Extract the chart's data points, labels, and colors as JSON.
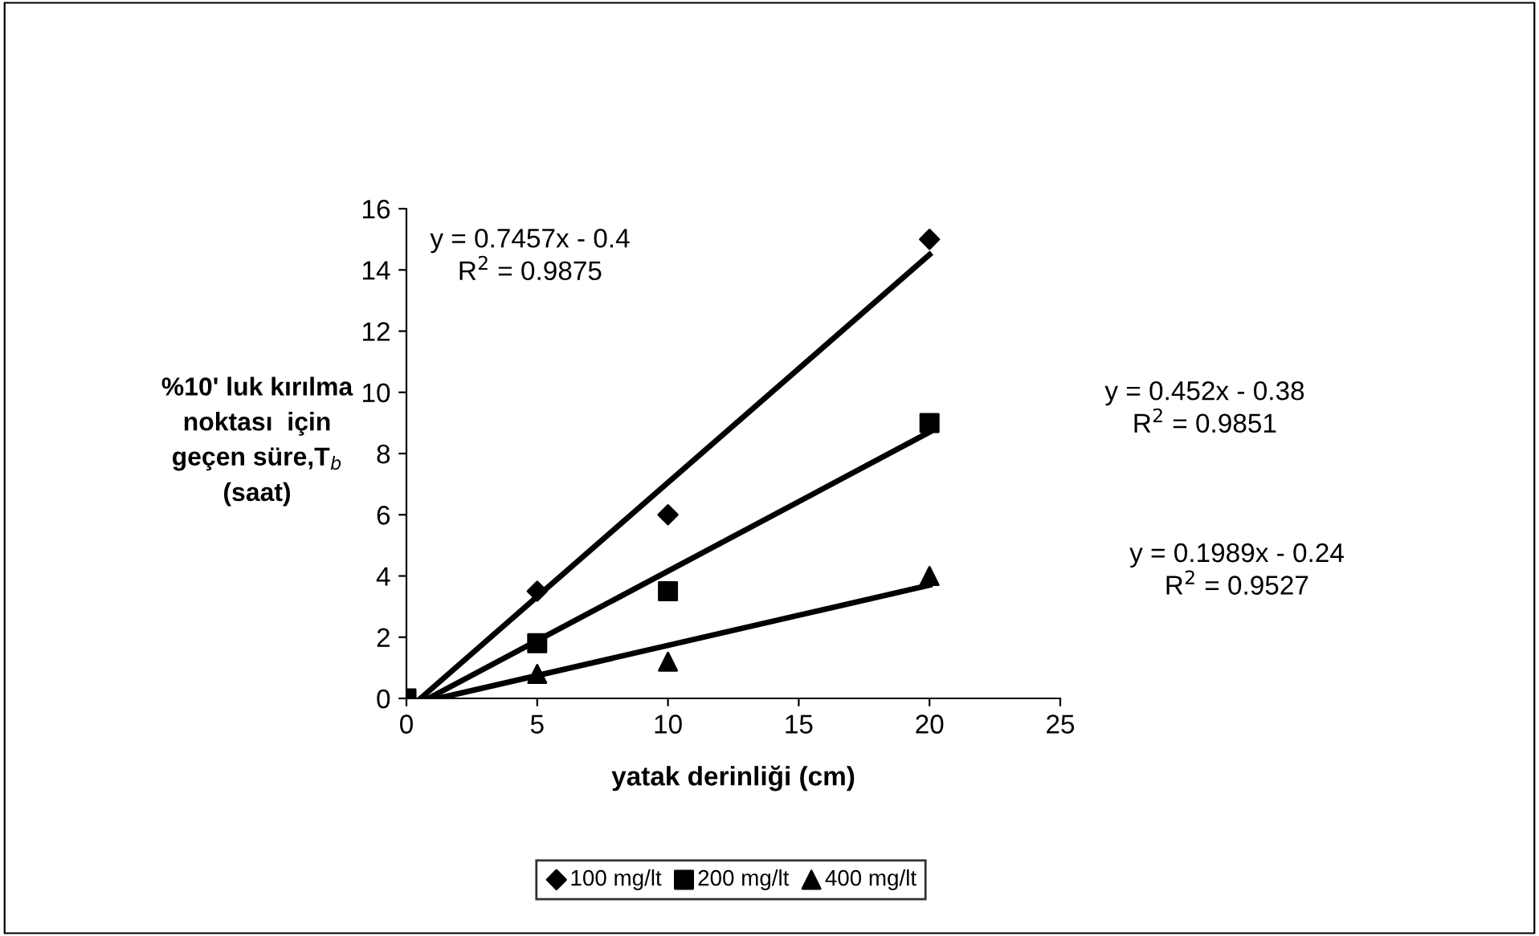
{
  "chart_data": {
    "type": "scatter",
    "xlabel": "yatak derinliği (cm)",
    "ylabel": "%10' luk kırılma\nnoktası  için\ngeçen süre,T$_{b}$\n(saat)",
    "x": [
      0,
      5,
      10,
      20
    ],
    "series": [
      {
        "name": "100 mg/lt",
        "color": "#000000",
        "marker": "diamond",
        "values": [
          null,
          3.5,
          6,
          15
        ]
      },
      {
        "name": "200 mg/lt",
        "color": "#000000",
        "marker": "square",
        "values": [
          0,
          1.8,
          3.5,
          9
        ]
      },
      {
        "name": "400 mg/lt",
        "color": "#000000",
        "marker": "triangle",
        "values": [
          null,
          0.8,
          1.2,
          4
        ]
      },
      {
        "type": "line",
        "color": "#000000",
        "marker": "none",
        "x": [
          0.536,
          20
        ],
        "values": [
          0,
          14.5
        ]
      },
      {
        "type": "line",
        "color": "#000000",
        "marker": "none",
        "x": [
          0.841,
          20
        ],
        "values": [
          0,
          8.7
        ]
      },
      {
        "type": "line",
        "color": "#000000",
        "marker": "none",
        "x": [
          1.207,
          20
        ],
        "values": [
          0,
          3.7
        ]
      }
    ],
    "annotations": [
      "y = 0.7457x - 0.4\nR$^{2}$ = 0.9875",
      "y = 0.452x - 0.38\nR$^{2}$ = 0.9851",
      "y = 0.1989x - 0.24\nR$^{2}$ = 0.9527"
    ],
    "xlim": [
      0,
      25
    ],
    "xticks": [
      0,
      5,
      10,
      15,
      20,
      25
    ],
    "ylim": [
      0,
      16
    ],
    "yticks": [
      0,
      2,
      4,
      6,
      8,
      10,
      12,
      14,
      16
    ],
    "grid": false,
    "legend": "bottom"
  }
}
